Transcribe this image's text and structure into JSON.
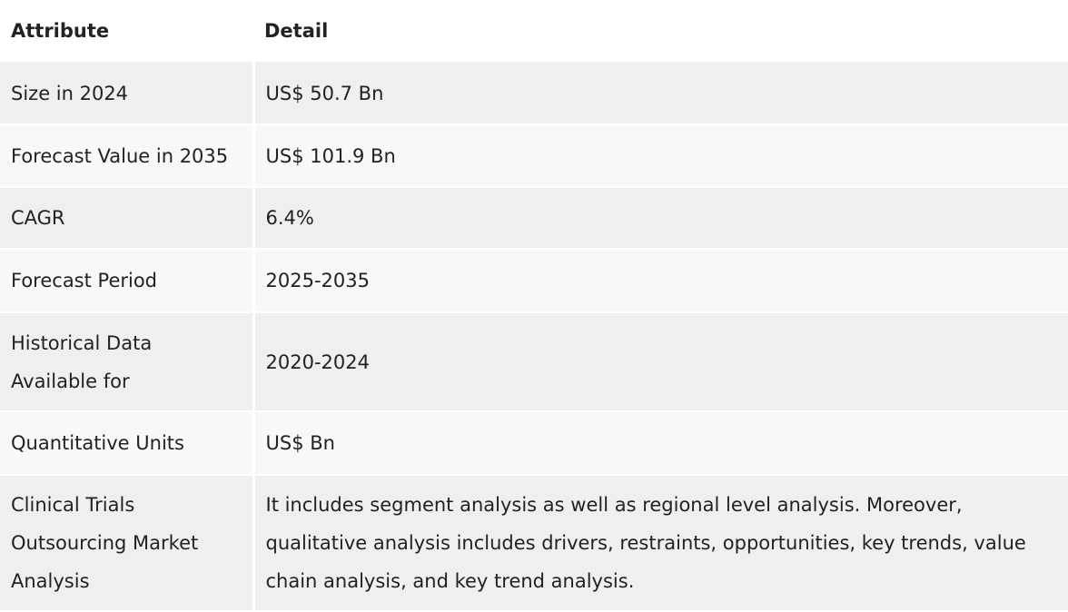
{
  "table": {
    "headers": [
      "Attribute",
      "Detail"
    ],
    "rows": [
      {
        "attribute": "Size in 2024",
        "detail": "US$ 50.7 Bn"
      },
      {
        "attribute": "Forecast Value in 2035",
        "detail": "US$ 101.9 Bn"
      },
      {
        "attribute": "CAGR",
        "detail": "6.4%"
      },
      {
        "attribute": "Forecast Period",
        "detail": "2025-2035"
      },
      {
        "attribute": "Historical Data Available for",
        "detail": "2020-2024"
      },
      {
        "attribute": "Quantitative Units",
        "detail": "US$ Bn"
      },
      {
        "attribute": "Clinical Trials Outsourcing Market Analysis",
        "detail": "It includes segment analysis as well as regional level analysis. Moreover, qualitative analysis includes drivers, restraints, opportunities, key trends, value chain analysis, and key trend analysis."
      }
    ]
  }
}
